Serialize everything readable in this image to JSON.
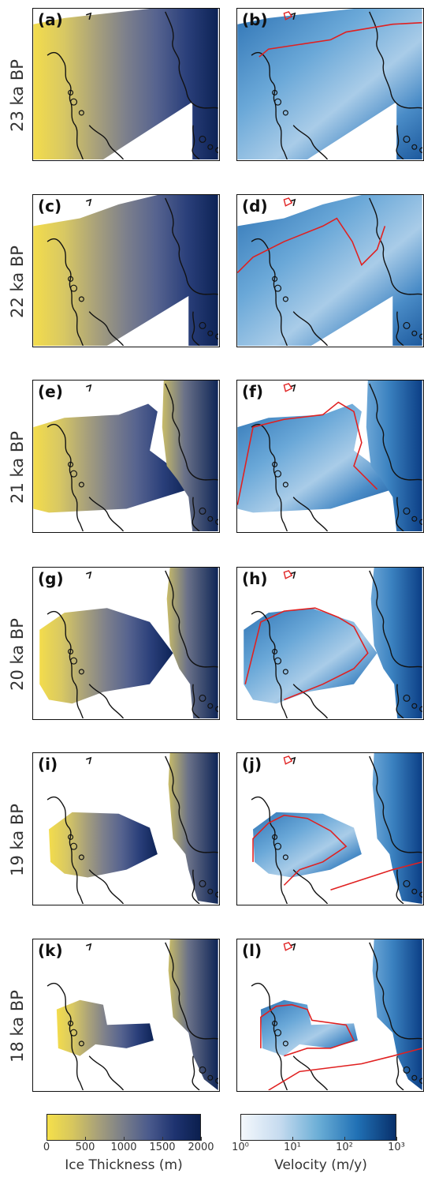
{
  "chart_data": {
    "type": "heatmap",
    "rows": [
      {
        "time_label": "23 ka BP",
        "thickness_panel": "(a)",
        "velocity_panel": "(b)",
        "extent": 0
      },
      {
        "time_label": "22 ka BP",
        "thickness_panel": "(c)",
        "velocity_panel": "(d)",
        "extent": 1
      },
      {
        "time_label": "21 ka BP",
        "thickness_panel": "(e)",
        "velocity_panel": "(f)",
        "extent": 2
      },
      {
        "time_label": "20 ka BP",
        "thickness_panel": "(g)",
        "velocity_panel": "(h)",
        "extent": 3
      },
      {
        "time_label": "19 ka BP",
        "thickness_panel": "(i)",
        "velocity_panel": "(j)",
        "extent": 4
      },
      {
        "time_label": "18 ka BP",
        "thickness_panel": "(k)",
        "velocity_panel": "(l)",
        "extent": 5
      }
    ],
    "colorbars": [
      {
        "label": "Ice Thickness (m)",
        "scale": "linear",
        "range": [
          0,
          2000
        ],
        "ticks": [
          "0",
          "500",
          "1000",
          "1500",
          "2000"
        ],
        "colors": [
          "#f5e04a",
          "#d6c65e",
          "#a7a07a",
          "#787d8a",
          "#4a5a8c",
          "#1e3370",
          "#0b1f4e"
        ]
      },
      {
        "label": "Velocity (m/y)",
        "scale": "log",
        "range": [
          1,
          1000
        ],
        "ticks": [
          "10⁰",
          "10¹",
          "10²",
          "10³"
        ],
        "colors": [
          "#f4f8fc",
          "#c6dbef",
          "#6baed6",
          "#2171b5",
          "#08306b"
        ]
      }
    ]
  }
}
